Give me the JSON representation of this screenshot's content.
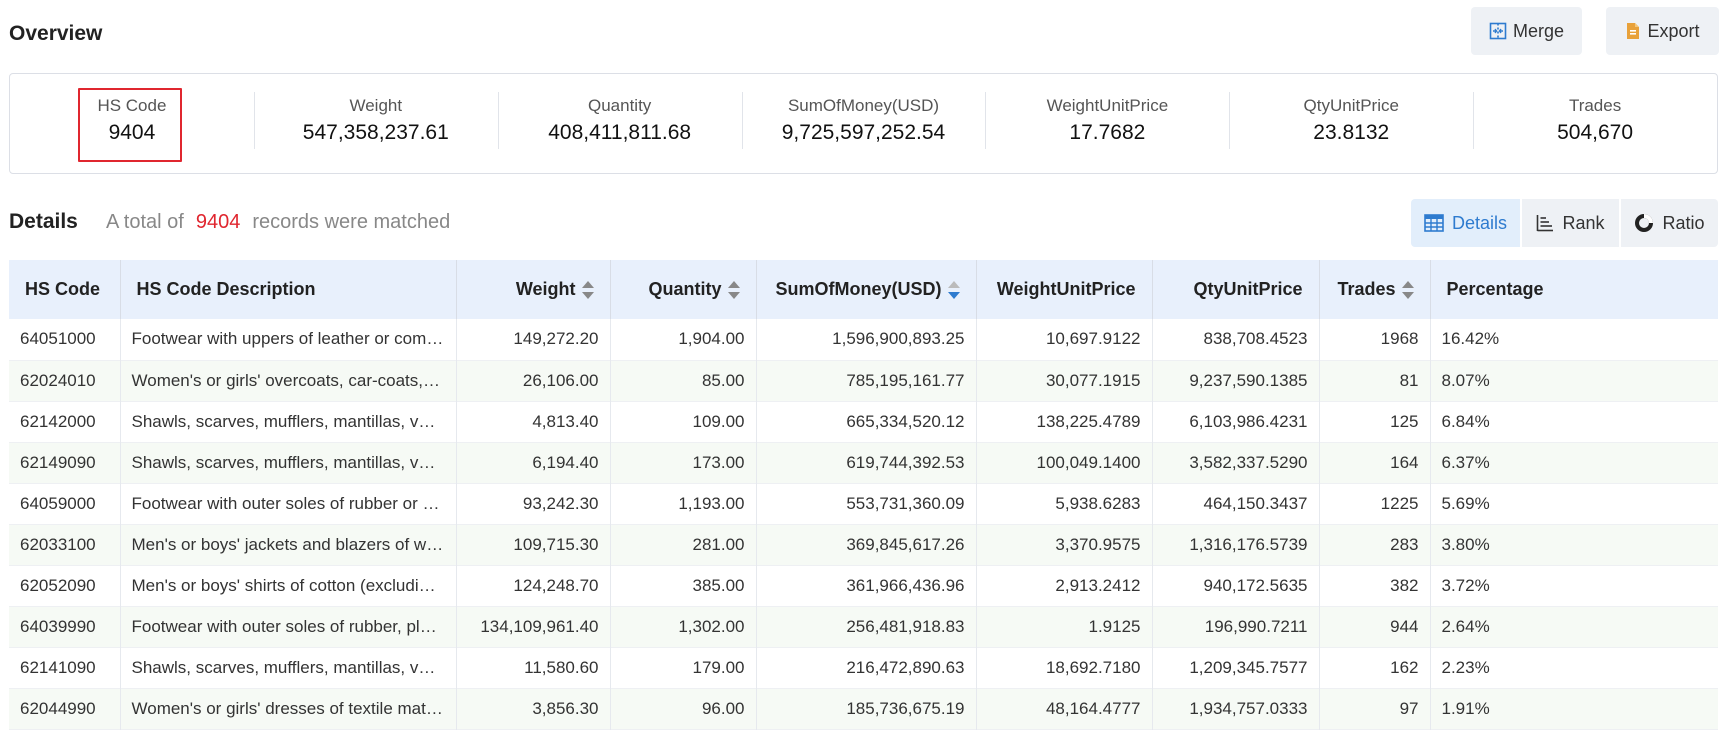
{
  "header": {
    "title": "Overview",
    "merge_label": "Merge",
    "export_label": "Export"
  },
  "overview": {
    "stats": [
      {
        "label": "HS Code",
        "value": "9404"
      },
      {
        "label": "Weight",
        "value": "547,358,237.61"
      },
      {
        "label": "Quantity",
        "value": "408,411,811.68"
      },
      {
        "label": "SumOfMoney(USD)",
        "value": "9,725,597,252.54"
      },
      {
        "label": "WeightUnitPrice",
        "value": "17.7682"
      },
      {
        "label": "QtyUnitPrice",
        "value": "23.8132"
      },
      {
        "label": "Trades",
        "value": "504,670"
      }
    ]
  },
  "details": {
    "title": "Details",
    "sub_prefix": "A total of",
    "count": "9404",
    "sub_suffix": "records were matched",
    "tabs": [
      {
        "label": "Details",
        "icon": "table-icon",
        "active": true
      },
      {
        "label": "Rank",
        "icon": "rank-icon",
        "active": false
      },
      {
        "label": "Ratio",
        "icon": "ratio-icon",
        "active": false
      }
    ]
  },
  "table": {
    "columns": [
      "HS Code",
      "HS Code Description",
      "Weight",
      "Quantity",
      "SumOfMoney(USD)",
      "WeightUnitPrice",
      "QtyUnitPrice",
      "Trades",
      "Percentage"
    ],
    "rows": [
      [
        "64051000",
        "Footwear with uppers of leather or comp...",
        "149,272.20",
        "1,904.00",
        "1,596,900,893.25",
        "10,697.9122",
        "838,708.4523",
        "1968",
        "16.42%"
      ],
      [
        "62024010",
        "Women's or girls' overcoats, car-coats, ca...",
        "26,106.00",
        "85.00",
        "785,195,161.77",
        "30,077.1915",
        "9,237,590.1385",
        "81",
        "8.07%"
      ],
      [
        "62142000",
        "Shawls, scarves, mufflers, mantillas, veils...",
        "4,813.40",
        "109.00",
        "665,334,520.12",
        "138,225.4789",
        "6,103,986.4231",
        "125",
        "6.84%"
      ],
      [
        "62149090",
        "Shawls, scarves, mufflers, mantillas, veils...",
        "6,194.40",
        "173.00",
        "619,744,392.53",
        "100,049.1400",
        "3,582,337.5290",
        "164",
        "6.37%"
      ],
      [
        "64059000",
        "Footwear with outer soles of rubber or pl...",
        "93,242.30",
        "1,193.00",
        "553,731,360.09",
        "5,938.6283",
        "464,150.3437",
        "1225",
        "5.69%"
      ],
      [
        "62033100",
        "Men's or boys' jackets and blazers of woo...",
        "109,715.30",
        "281.00",
        "369,845,617.26",
        "3,370.9575",
        "1,316,176.5739",
        "283",
        "3.80%"
      ],
      [
        "62052090",
        "Men's or boys' shirts of cotton (excluding ...",
        "124,248.70",
        "385.00",
        "361,966,436.96",
        "2,913.2412",
        "940,172.5635",
        "382",
        "3.72%"
      ],
      [
        "64039990",
        "Footwear with outer soles of rubber, plast...",
        "134,109,961.40",
        "1,302.00",
        "256,481,918.83",
        "1.9125",
        "196,990.7211",
        "944",
        "2.64%"
      ],
      [
        "62141090",
        "Shawls, scarves, mufflers, mantillas, veils...",
        "11,580.60",
        "179.00",
        "216,472,890.63",
        "18,692.7180",
        "1,209,345.7577",
        "162",
        "2.23%"
      ],
      [
        "62044990",
        "Women's or girls' dresses of textile mater...",
        "3,856.30",
        "96.00",
        "185,736,675.19",
        "48,164.4777",
        "1,934,757.0333",
        "97",
        "1.91%"
      ]
    ]
  },
  "colors": {
    "accent": "#2e7bcf",
    "highlight": "#e0262f",
    "header_bg": "#e8f0fc",
    "button_bg": "#eef1f5"
  }
}
